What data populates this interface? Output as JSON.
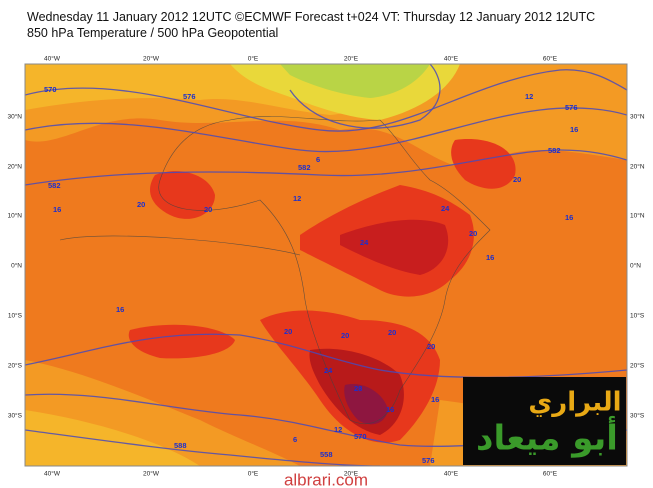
{
  "header": {
    "line1": "Wednesday 11 January 2012 12UTC ©ECMWF Forecast t+024 VT: Thursday 12 January 2012 12UTC",
    "line2": "850 hPa Temperature / 500 hPa Geopotential"
  },
  "map": {
    "lon_labels": [
      "40°W",
      "20°W",
      "0°E",
      "20°E",
      "40°E",
      "60°E"
    ],
    "lat_labels": [
      "30°N",
      "20°N",
      "10°N",
      "0°N",
      "10°S",
      "20°S",
      "30°S"
    ],
    "contour_labels": [
      "570",
      "576",
      "582",
      "582",
      "6",
      "12",
      "576",
      "16",
      "582",
      "12",
      "16",
      "20",
      "20",
      "20",
      "16",
      "24",
      "24",
      "20",
      "16",
      "16",
      "20",
      "20",
      "20",
      "20",
      "24",
      "28",
      "16",
      "16",
      "588",
      "6",
      "12",
      "570",
      "558",
      "576"
    ]
  },
  "watermark": "albrari.com",
  "logo": {
    "line1": "البراري",
    "line2": "أبو ميعاد"
  }
}
